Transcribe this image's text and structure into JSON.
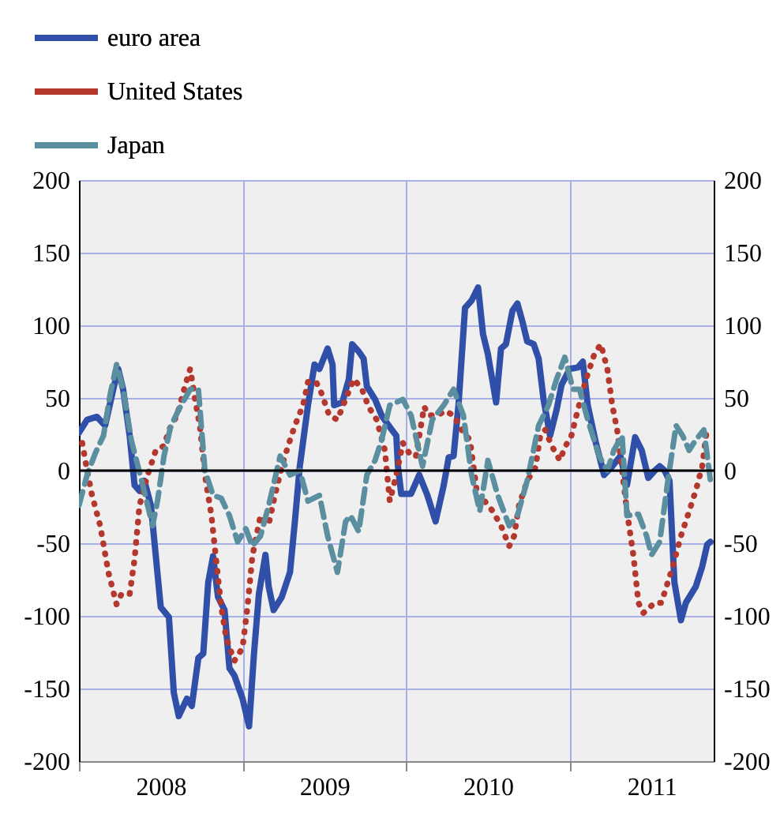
{
  "chart_data": {
    "type": "line",
    "legend": "top left",
    "grid": true,
    "xlim": [
      2008,
      2011.88
    ],
    "xticks": [
      {
        "value": 2008,
        "label": null
      },
      {
        "value": 2008.5,
        "label": "2008"
      },
      {
        "value": 2009,
        "label": null
      },
      {
        "value": 2009.5,
        "label": "2009"
      },
      {
        "value": 2010,
        "label": null
      },
      {
        "value": 2010.5,
        "label": "2010"
      },
      {
        "value": 2011,
        "label": null
      },
      {
        "value": 2011.5,
        "label": "2011"
      }
    ],
    "ylim": [
      -200,
      200
    ],
    "yticks": [
      -200,
      -150,
      -100,
      -50,
      0,
      50,
      100,
      150,
      200
    ],
    "y2lim": [
      -200,
      200
    ],
    "y2ticks": [
      -200,
      -150,
      -100,
      -50,
      0,
      50,
      100,
      150,
      200
    ],
    "ref_lines": [
      {
        "axis": "y",
        "value": 0,
        "color": "#000000"
      }
    ],
    "series": [
      {
        "name": "euro area",
        "color": "#2f4fa8",
        "line_style": "solid",
        "x": [
          2008.0,
          2008.05,
          2008.11,
          2008.16,
          2008.21,
          2008.24,
          2008.27,
          2008.31,
          2008.34,
          2008.37,
          2008.4,
          2008.44,
          2008.47,
          2008.5,
          2008.55,
          2008.58,
          2008.61,
          2008.66,
          2008.69,
          2008.73,
          2008.76,
          2008.79,
          2008.82,
          2008.85,
          2008.89,
          2008.92,
          2008.95,
          2009.0,
          2009.04,
          2009.07,
          2009.1,
          2009.14,
          2009.16,
          2009.19,
          2009.24,
          2009.29,
          2009.32,
          2009.35,
          2009.4,
          2009.44,
          2009.47,
          2009.52,
          2009.55,
          2009.56,
          2009.61,
          2009.65,
          2009.67,
          2009.71,
          2009.74,
          2009.76,
          2009.81,
          2009.85,
          2009.9,
          2009.94,
          2009.95,
          2009.97,
          2010.03,
          2010.08,
          2010.13,
          2010.18,
          2010.23,
          2010.26,
          2010.29,
          2010.32,
          2010.36,
          2010.4,
          2010.44,
          2010.47,
          2010.5,
          2010.55,
          2010.58,
          2010.61,
          2010.65,
          2010.68,
          2010.71,
          2010.74,
          2010.78,
          2010.81,
          2010.84,
          2010.88,
          2010.92,
          2010.95,
          2011.0,
          2011.05,
          2011.08,
          2011.11,
          2011.16,
          2011.21,
          2011.26,
          2011.31,
          2011.35,
          2011.4,
          2011.44,
          2011.48,
          2011.52,
          2011.55,
          2011.58,
          2011.61,
          2011.64,
          2011.68,
          2011.71,
          2011.77,
          2011.81,
          2011.84,
          2011.86
        ],
        "values": [
          26,
          35,
          37,
          31,
          56,
          70,
          56,
          24,
          -10,
          -14,
          -7,
          -24,
          -59,
          -94,
          -101,
          -153,
          -169,
          -157,
          -162,
          -129,
          -126,
          -77,
          -59,
          -87,
          -96,
          -136,
          -141,
          -157,
          -176,
          -126,
          -85,
          -58,
          -80,
          -96,
          -87,
          -70,
          -35,
          3,
          45,
          73,
          70,
          84,
          73,
          45,
          47,
          63,
          87,
          82,
          77,
          58,
          49,
          38,
          30,
          24,
          3,
          -16,
          -16,
          -3,
          -17,
          -35,
          -10,
          9,
          10,
          45,
          112,
          117,
          126,
          94,
          80,
          47,
          84,
          87,
          110,
          115,
          103,
          89,
          87,
          77,
          49,
          24,
          42,
          59,
          70,
          71,
          75,
          45,
          19,
          -3,
          3,
          10,
          -10,
          23,
          14,
          -5,
          0,
          3,
          0,
          -7,
          -77,
          -103,
          -91,
          -80,
          -66,
          -51,
          -49
        ]
      },
      {
        "name": "United States",
        "color": "#b5382e",
        "line_style": "dotted",
        "x": [
          2008.02,
          2008.05,
          2008.08,
          2008.13,
          2008.18,
          2008.23,
          2008.26,
          2008.31,
          2008.34,
          2008.37,
          2008.42,
          2008.47,
          2008.52,
          2008.55,
          2008.6,
          2008.65,
          2008.68,
          2008.71,
          2008.74,
          2008.77,
          2008.81,
          2008.84,
          2008.87,
          2008.9,
          2008.95,
          2009.0,
          2009.03,
          2009.06,
          2009.11,
          2009.16,
          2009.19,
          2009.24,
          2009.29,
          2009.32,
          2009.37,
          2009.4,
          2009.45,
          2009.48,
          2009.53,
          2009.58,
          2009.63,
          2009.68,
          2009.73,
          2009.77,
          2009.82,
          2009.87,
          2009.9,
          2009.94,
          2009.98,
          2010.03,
          2010.06,
          2010.11,
          2010.14,
          2010.19,
          2010.24,
          2010.29,
          2010.34,
          2010.39,
          2010.44,
          2010.48,
          2010.53,
          2010.58,
          2010.63,
          2010.66,
          2010.69,
          2010.74,
          2010.79,
          2010.82,
          2010.85,
          2010.89,
          2010.94,
          2010.97,
          2011.01,
          2011.05,
          2011.1,
          2011.15,
          2011.19,
          2011.23,
          2011.26,
          2011.29,
          2011.32,
          2011.35,
          2011.39,
          2011.42,
          2011.45,
          2011.52,
          2011.56,
          2011.63,
          2011.68,
          2011.73,
          2011.77,
          2011.81,
          2011.84
        ],
        "values": [
          19,
          0,
          -17,
          -38,
          -70,
          -92,
          -85,
          -85,
          -61,
          -24,
          -3,
          14,
          17,
          28,
          38,
          59,
          70,
          49,
          30,
          -3,
          -31,
          -63,
          -94,
          -115,
          -131,
          -122,
          -94,
          -59,
          -31,
          -37,
          -21,
          3,
          21,
          31,
          45,
          61,
          61,
          54,
          38,
          35,
          49,
          63,
          56,
          44,
          35,
          14,
          -21,
          -3,
          19,
          10,
          10,
          44,
          38,
          38,
          41,
          38,
          28,
          21,
          -21,
          -21,
          -28,
          -38,
          -52,
          -45,
          -24,
          -7,
          2,
          24,
          28,
          17,
          7,
          16,
          24,
          42,
          63,
          80,
          87,
          70,
          45,
          28,
          0,
          -28,
          -59,
          -91,
          -98,
          -91,
          -91,
          -66,
          -45,
          -28,
          -14,
          3,
          30
        ]
      },
      {
        "name": "Japan",
        "color": "#5b8fa0",
        "line_style": "dashed",
        "x": [
          2008.0,
          2008.05,
          2008.1,
          2008.15,
          2008.19,
          2008.23,
          2008.27,
          2008.32,
          2008.39,
          2008.45,
          2008.48,
          2008.52,
          2008.56,
          2008.61,
          2008.68,
          2008.73,
          2008.77,
          2008.82,
          2008.87,
          2008.92,
          2008.97,
          2009.02,
          2009.06,
          2009.11,
          2009.16,
          2009.23,
          2009.29,
          2009.35,
          2009.4,
          2009.47,
          2009.52,
          2009.58,
          2009.63,
          2009.66,
          2009.71,
          2009.76,
          2009.81,
          2009.85,
          2009.9,
          2009.94,
          2009.98,
          2010.03,
          2010.1,
          2010.16,
          2010.23,
          2010.29,
          2010.35,
          2010.4,
          2010.45,
          2010.5,
          2010.56,
          2010.63,
          2010.68,
          2010.74,
          2010.81,
          2010.87,
          2010.92,
          2010.97,
          2011.02,
          2011.06,
          2011.11,
          2011.18,
          2011.23,
          2011.27,
          2011.32,
          2011.35,
          2011.42,
          2011.47,
          2011.5,
          2011.55,
          2011.6,
          2011.65,
          2011.69,
          2011.73,
          2011.77,
          2011.82,
          2011.86
        ],
        "values": [
          -24,
          -3,
          12,
          24,
          52,
          73,
          56,
          21,
          -10,
          -38,
          -21,
          10,
          30,
          42,
          56,
          56,
          0,
          -17,
          -19,
          -31,
          -49,
          -40,
          -52,
          -45,
          -24,
          10,
          -3,
          0,
          -21,
          -17,
          -45,
          -70,
          -35,
          -31,
          -42,
          -3,
          7,
          21,
          45,
          47,
          49,
          38,
          3,
          35,
          45,
          56,
          38,
          -3,
          -28,
          7,
          -17,
          -38,
          -31,
          -7,
          31,
          45,
          63,
          78,
          56,
          56,
          35,
          10,
          0,
          14,
          24,
          -31,
          -30,
          -45,
          -58,
          -49,
          -7,
          31,
          24,
          14,
          21,
          28,
          -7
        ]
      }
    ]
  }
}
